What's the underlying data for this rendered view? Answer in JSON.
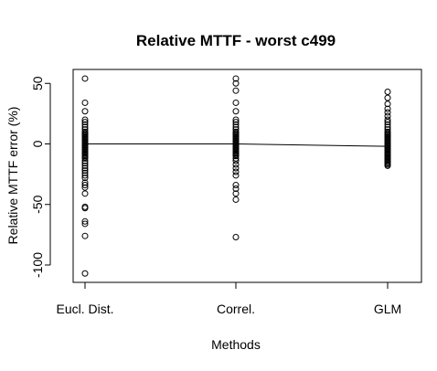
{
  "chart_data": {
    "type": "scatter",
    "title": "Relative MTTF - worst c499",
    "xlabel": "Methods",
    "ylabel": "Relative MTTF error (%)",
    "categories": [
      "Eucl. Dist.",
      "Correl.",
      "GLM"
    ],
    "ylim": [
      -115,
      60
    ],
    "yticks": [
      50,
      0,
      -50,
      -100
    ],
    "grid": false,
    "legend": "none",
    "series": [
      {
        "values": [
          [
            54,
            34,
            27,
            20,
            18,
            16,
            14,
            12,
            10,
            9,
            8,
            7,
            6,
            5,
            4,
            3,
            2,
            1,
            0,
            -1,
            -2,
            -3,
            -4,
            -5,
            -6,
            -7,
            -8,
            -9,
            -10,
            -11,
            -12,
            -14,
            -16,
            -18,
            -20,
            -22,
            -24,
            -26,
            -28,
            -32,
            -34,
            -36,
            -41,
            -52,
            -53,
            -64,
            -66,
            -76,
            -107
          ],
          [
            54,
            50,
            44,
            34,
            27,
            20,
            18,
            16,
            14,
            12,
            10,
            9,
            8,
            7,
            6,
            5,
            4,
            3,
            2,
            1,
            0,
            -1,
            -2,
            -3,
            -4,
            -5,
            -6,
            -7,
            -8,
            -9,
            -10,
            -12,
            -14,
            -17,
            -20,
            -23,
            -26,
            -34,
            -37,
            -41,
            -46,
            -77
          ],
          [
            43,
            38,
            33,
            29,
            26,
            23,
            20,
            18,
            16,
            14,
            12,
            10,
            9,
            8,
            7,
            6,
            5,
            4,
            3,
            2,
            1,
            0,
            -1,
            -2,
            -3,
            -4,
            -5,
            -6,
            -7,
            -8,
            -9,
            -10,
            -11,
            -12,
            -13,
            -14,
            -15,
            -16,
            -17,
            -18
          ]
        ]
      },
      {
        "type": "line",
        "values": [
          0,
          0,
          -2
        ]
      }
    ]
  }
}
